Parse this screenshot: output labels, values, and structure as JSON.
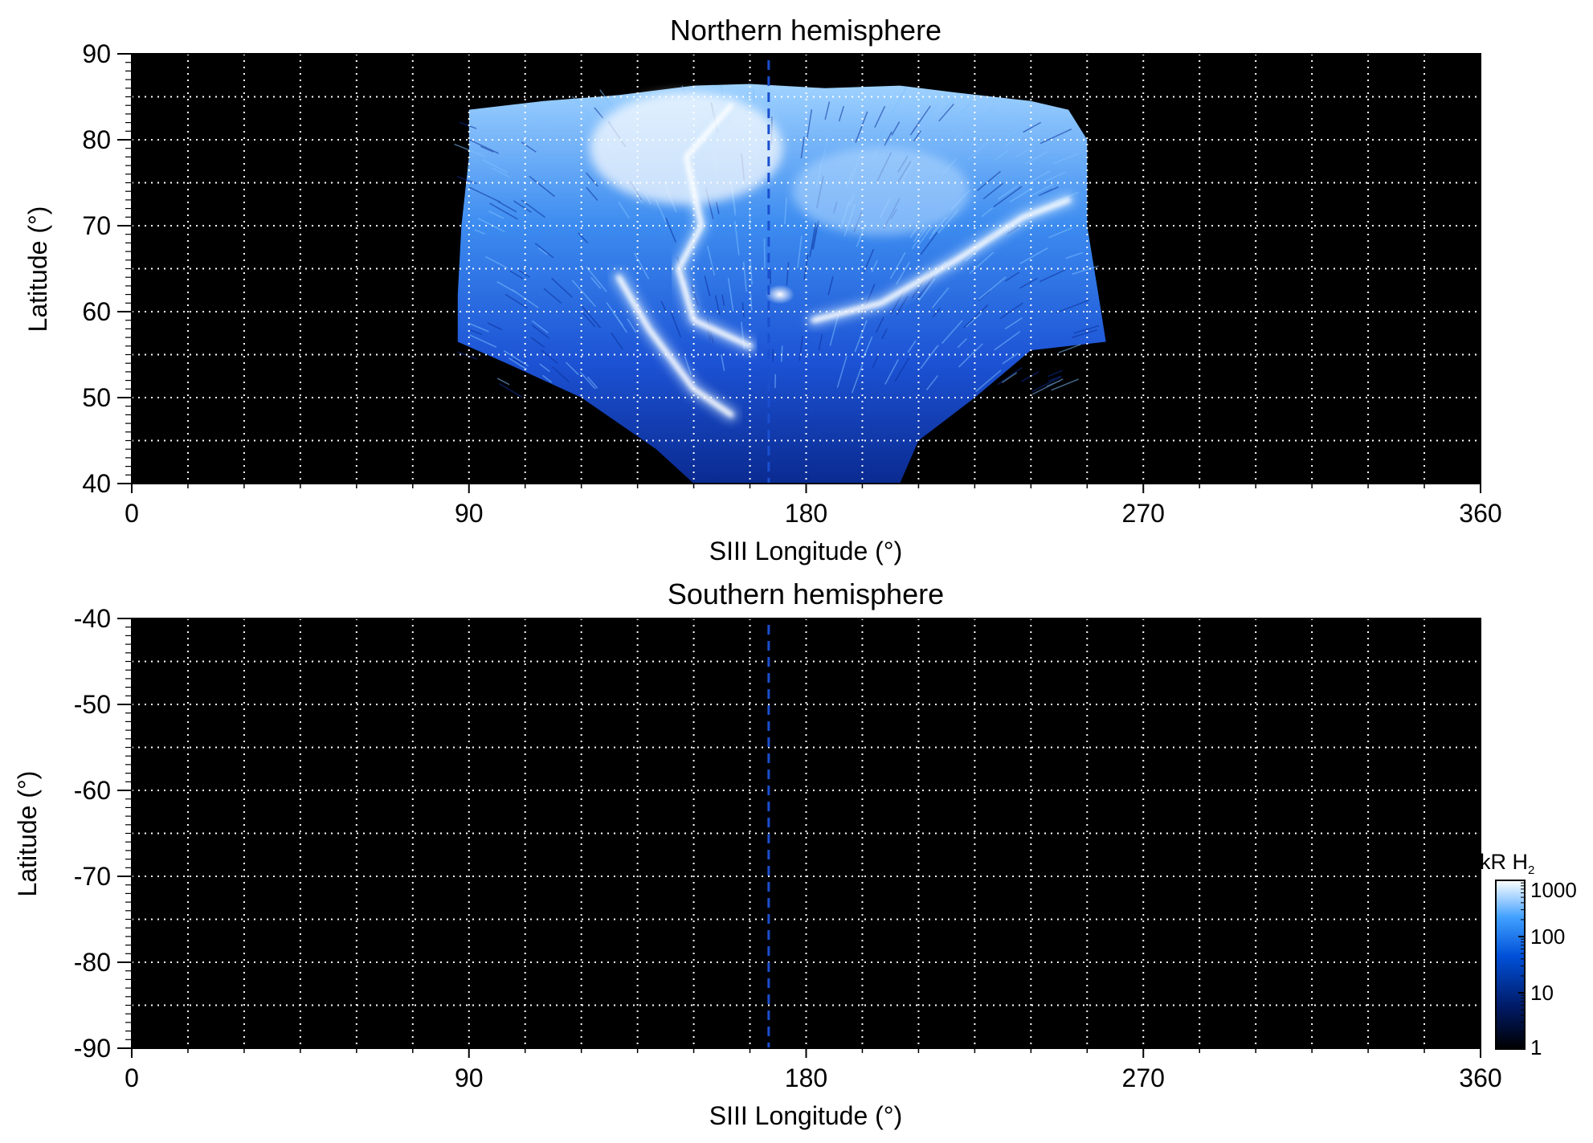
{
  "chart_data": [
    {
      "type": "heatmap",
      "title": "Northern hemisphere",
      "xlabel": "SIII Longitude (°)",
      "ylabel": "Latitude (°)",
      "xlim": [
        0,
        360
      ],
      "ylim": [
        40,
        90
      ],
      "x_ticks": [
        "0",
        "90",
        "180",
        "270",
        "360"
      ],
      "y_ticks": [
        "90",
        "80",
        "70",
        "60",
        "50",
        "40"
      ],
      "grid": true,
      "background": "#000000",
      "reference_line": {
        "longitude": 170,
        "style": "dashed",
        "color": "#1a4fd0"
      },
      "features": {
        "coverage_footprint": {
          "top": [
            [
              90,
              83.5
            ],
            [
              110,
              84.5
            ],
            [
              130,
              85.2
            ],
            [
              150,
              86.3
            ],
            [
              165,
              86.5
            ],
            [
              185,
              86
            ],
            [
              205,
              86.3
            ],
            [
              220,
              85.5
            ],
            [
              240,
              84.5
            ],
            [
              250,
              83.5
            ],
            [
              255,
              80
            ],
            [
              255,
              70
            ]
          ],
          "bottom": [
            [
              255,
              70
            ],
            [
              258,
              62
            ],
            [
              260,
              56.5
            ],
            [
              240,
              55.5
            ],
            [
              225,
              50
            ],
            [
              210,
              45
            ],
            [
              205,
              40
            ],
            [
              150,
              40
            ],
            [
              140,
              44
            ],
            [
              120,
              50
            ],
            [
              100,
              54
            ],
            [
              87,
              56.5
            ],
            [
              87,
              62
            ],
            [
              88,
              70
            ],
            [
              90,
              78
            ],
            [
              90,
              83.5
            ]
          ]
        },
        "bright_arcs": [
          [
            [
              160,
              84
            ],
            [
              148,
              78
            ],
            [
              152,
              70
            ],
            [
              146,
              65
            ],
            [
              150,
              59
            ],
            [
              165,
              56
            ]
          ],
          [
            [
              130,
              64
            ],
            [
              138,
              58
            ],
            [
              150,
              51
            ],
            [
              160,
              48
            ]
          ],
          [
            [
              182,
              59
            ],
            [
              200,
              61
            ],
            [
              220,
              66
            ],
            [
              238,
              71
            ],
            [
              250,
              73
            ]
          ]
        ],
        "bright_spot": {
          "longitude": 173,
          "latitude": 62,
          "kR": 1000
        }
      }
    },
    {
      "type": "heatmap",
      "title": "Southern hemisphere",
      "xlabel": "SIII Longitude (°)",
      "ylabel": "Latitude (°)",
      "xlim": [
        0,
        360
      ],
      "ylim": [
        -90,
        -40
      ],
      "x_ticks": [
        "0",
        "90",
        "180",
        "270",
        "360"
      ],
      "y_ticks": [
        "-40",
        "-50",
        "-60",
        "-70",
        "-80",
        "-90"
      ],
      "grid": true,
      "background": "#000000",
      "reference_line": {
        "longitude": 170,
        "style": "dashed",
        "color": "#1a4fd0"
      },
      "features": {
        "coverage_footprint": null
      }
    }
  ],
  "colorbar": {
    "label": "kR H",
    "label_sub": "2",
    "scale": "log",
    "range": [
      1,
      1000
    ],
    "ticks": [
      "1000",
      "100",
      "10",
      "1"
    ],
    "colors": [
      "#000000",
      "#001a66",
      "#0050d8",
      "#40a0ff",
      "#ffffff"
    ]
  }
}
